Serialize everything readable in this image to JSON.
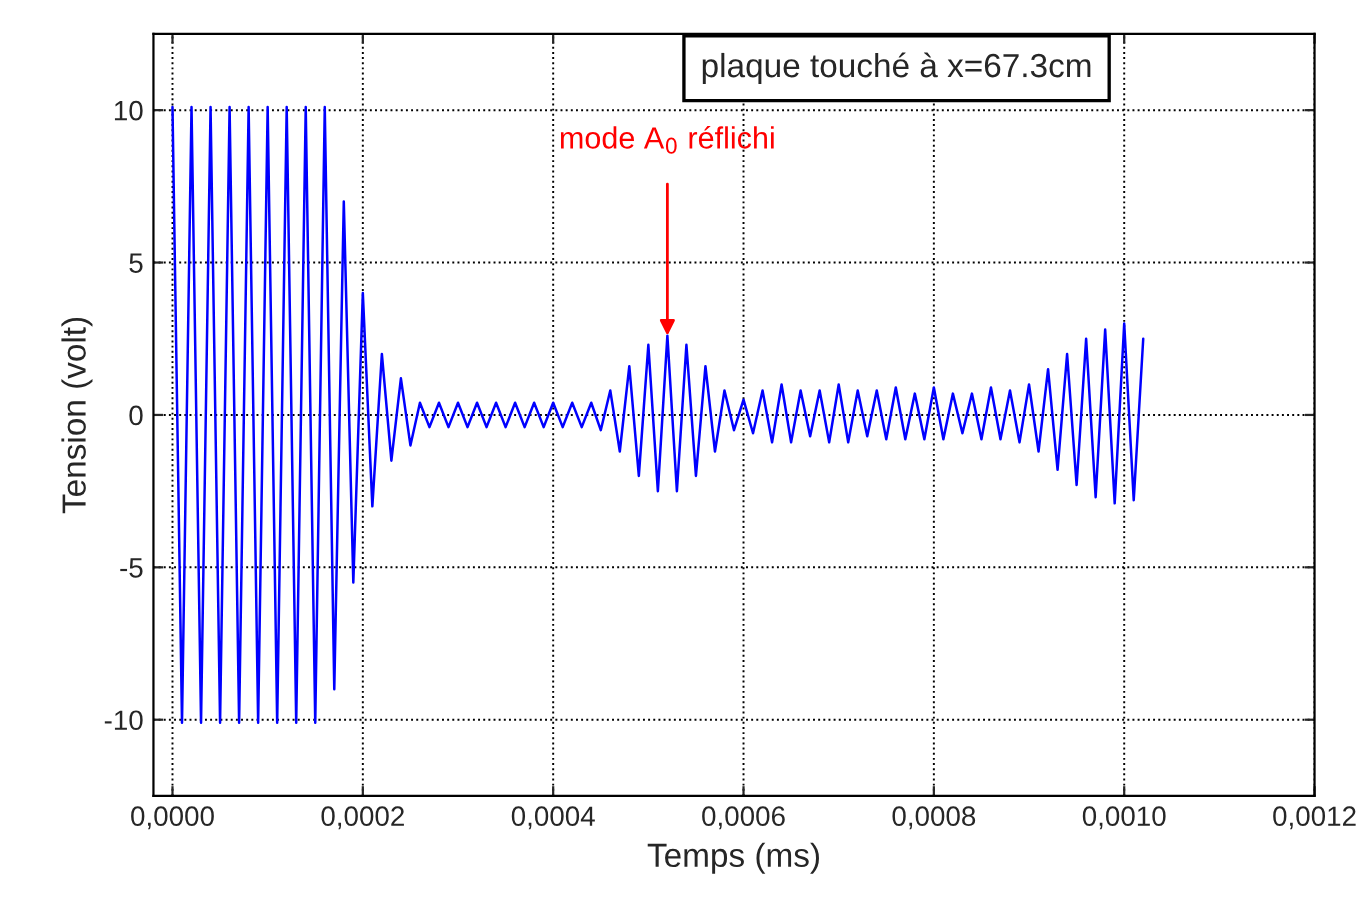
{
  "chart_data": {
    "type": "line",
    "title": "plaque touché à x=67.3cm",
    "xlabel": "Temps (ms)",
    "ylabel": "Tension (volt)",
    "xlim": [
      -2e-05,
      0.0012
    ],
    "ylim": [
      -12.5,
      12.5
    ],
    "xticks": [
      {
        "value": 0,
        "label": "0,0000"
      },
      {
        "value": 0.0002,
        "label": "0,0002"
      },
      {
        "value": 0.0004,
        "label": "0,0004"
      },
      {
        "value": 0.0006,
        "label": "0,0006"
      },
      {
        "value": 0.0008,
        "label": "0,0008"
      },
      {
        "value": 0.001,
        "label": "0,0010"
      },
      {
        "value": 0.0012,
        "label": "0,0012"
      }
    ],
    "yticks": [
      -10,
      -5,
      0,
      5,
      10
    ],
    "grid": true,
    "line_style": "solid",
    "marker": "none",
    "annotations": [
      {
        "text": "mode A$_{0}$ réflichi",
        "x": 0.00052,
        "y": 2.6
      }
    ],
    "series": [
      {
        "color": "#0000ff",
        "x": [
          0,
          1e-05,
          2e-05,
          3e-05,
          4e-05,
          5e-05,
          6e-05,
          7e-05,
          8e-05,
          9e-05,
          0.0001,
          0.00011,
          0.00012,
          0.00013,
          0.00014,
          0.00015,
          0.00016,
          0.00017,
          0.00018,
          0.00019,
          0.0002,
          0.00021,
          0.00022,
          0.00023,
          0.00024,
          0.00025,
          0.00026,
          0.00027,
          0.00028,
          0.00029,
          0.0003,
          0.00031,
          0.00032,
          0.00033,
          0.00034,
          0.00035,
          0.00036,
          0.00037,
          0.00038,
          0.00039,
          0.0004,
          0.00041,
          0.00042,
          0.00043,
          0.00044,
          0.00045,
          0.00046,
          0.00047,
          0.00048,
          0.00049,
          0.0005,
          0.00051,
          0.00052,
          0.00053,
          0.00054,
          0.00055,
          0.00056,
          0.00057,
          0.00058,
          0.00059,
          0.0006,
          0.00061,
          0.00062,
          0.00063,
          0.00064,
          0.00065,
          0.00066,
          0.00067,
          0.00068,
          0.00069,
          0.0007,
          0.00071,
          0.00072,
          0.00073,
          0.00074,
          0.00075,
          0.00076,
          0.00077,
          0.00078,
          0.00079,
          0.0008,
          0.00081,
          0.00082,
          0.00083,
          0.00084,
          0.00085,
          0.00086,
          0.00087,
          0.00088,
          0.00089,
          0.0009,
          0.00091,
          0.00092,
          0.00093,
          0.00094,
          0.00095,
          0.00096,
          0.00097,
          0.00098,
          0.00099,
          0.001,
          0.00101,
          0.00102
        ],
        "values": [
          10.1,
          -10.1,
          10.1,
          -10.1,
          10.1,
          -10.1,
          10.1,
          -10.1,
          10.1,
          -10.1,
          10.1,
          -10.1,
          10.1,
          -10.1,
          10.1,
          -10.1,
          10.1,
          -9,
          7,
          -5.5,
          4,
          -3,
          2,
          -1.5,
          1.2,
          -1,
          0.4,
          -0.4,
          0.4,
          -0.4,
          0.4,
          -0.4,
          0.4,
          -0.4,
          0.4,
          -0.4,
          0.4,
          -0.4,
          0.4,
          -0.4,
          0.4,
          -0.4,
          0.4,
          -0.4,
          0.4,
          -0.5,
          0.8,
          -1.2,
          1.6,
          -2,
          2.3,
          -2.5,
          2.6,
          -2.5,
          2.3,
          -2,
          1.6,
          -1.2,
          0.8,
          -0.5,
          0.5,
          -0.6,
          0.8,
          -0.9,
          1,
          -0.9,
          0.8,
          -0.7,
          0.8,
          -0.9,
          1,
          -0.9,
          0.8,
          -0.7,
          0.8,
          -0.8,
          0.9,
          -0.8,
          0.7,
          -0.8,
          0.9,
          -0.8,
          0.7,
          -0.6,
          0.7,
          -0.8,
          0.9,
          -0.8,
          0.8,
          -0.9,
          1,
          -1.2,
          1.5,
          -1.8,
          2,
          -2.3,
          2.5,
          -2.7,
          2.8,
          -2.9,
          3,
          -2.8,
          2.5
        ]
      }
    ]
  }
}
